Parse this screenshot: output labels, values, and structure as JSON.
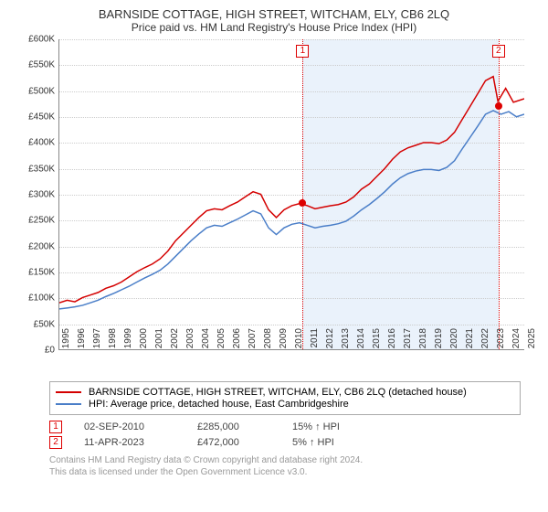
{
  "title": "BARNSIDE COTTAGE, HIGH STREET, WITCHAM, ELY, CB6 2LQ",
  "subtitle": "Price paid vs. HM Land Registry's House Price Index (HPI)",
  "chart": {
    "type": "line",
    "ylim": [
      0,
      600
    ],
    "ytick_step": 50,
    "yprefix": "£",
    "ysuffix": "K",
    "xlim": [
      1995,
      2025
    ],
    "xtick_step": 1,
    "grid_color": "#cccccc",
    "shade_start": 2010.67,
    "shade_end": 2023.28,
    "shade_color": "#eaf2fb",
    "series": [
      {
        "name": "property",
        "color": "#d40000",
        "width": 1.5,
        "points": [
          [
            1995,
            90
          ],
          [
            1995.5,
            95
          ],
          [
            1996,
            92
          ],
          [
            1996.5,
            100
          ],
          [
            1997,
            105
          ],
          [
            1997.5,
            110
          ],
          [
            1998,
            118
          ],
          [
            1998.5,
            123
          ],
          [
            1999,
            130
          ],
          [
            1999.5,
            140
          ],
          [
            2000,
            150
          ],
          [
            2000.5,
            158
          ],
          [
            2001,
            165
          ],
          [
            2001.5,
            175
          ],
          [
            2002,
            190
          ],
          [
            2002.5,
            210
          ],
          [
            2003,
            225
          ],
          [
            2003.5,
            240
          ],
          [
            2004,
            255
          ],
          [
            2004.5,
            268
          ],
          [
            2005,
            272
          ],
          [
            2005.5,
            270
          ],
          [
            2006,
            278
          ],
          [
            2006.5,
            285
          ],
          [
            2007,
            295
          ],
          [
            2007.5,
            305
          ],
          [
            2008,
            300
          ],
          [
            2008.5,
            270
          ],
          [
            2009,
            255
          ],
          [
            2009.5,
            270
          ],
          [
            2010,
            278
          ],
          [
            2010.5,
            282
          ],
          [
            2011,
            278
          ],
          [
            2011.5,
            272
          ],
          [
            2012,
            275
          ],
          [
            2012.5,
            278
          ],
          [
            2013,
            280
          ],
          [
            2013.5,
            285
          ],
          [
            2014,
            295
          ],
          [
            2014.5,
            310
          ],
          [
            2015,
            320
          ],
          [
            2015.5,
            335
          ],
          [
            2016,
            350
          ],
          [
            2016.5,
            368
          ],
          [
            2017,
            382
          ],
          [
            2017.5,
            390
          ],
          [
            2018,
            395
          ],
          [
            2018.5,
            400
          ],
          [
            2019,
            400
          ],
          [
            2019.5,
            398
          ],
          [
            2020,
            405
          ],
          [
            2020.5,
            420
          ],
          [
            2021,
            445
          ],
          [
            2021.5,
            470
          ],
          [
            2022,
            495
          ],
          [
            2022.5,
            520
          ],
          [
            2023,
            528
          ],
          [
            2023.3,
            480
          ],
          [
            2023.8,
            505
          ],
          [
            2024.3,
            478
          ],
          [
            2025,
            485
          ]
        ]
      },
      {
        "name": "hpi",
        "color": "#4a7ec8",
        "width": 1.5,
        "points": [
          [
            1995,
            78
          ],
          [
            1995.5,
            80
          ],
          [
            1996,
            82
          ],
          [
            1996.5,
            85
          ],
          [
            1997,
            90
          ],
          [
            1997.5,
            95
          ],
          [
            1998,
            102
          ],
          [
            1998.5,
            108
          ],
          [
            1999,
            115
          ],
          [
            1999.5,
            122
          ],
          [
            2000,
            130
          ],
          [
            2000.5,
            138
          ],
          [
            2001,
            145
          ],
          [
            2001.5,
            153
          ],
          [
            2002,
            165
          ],
          [
            2002.5,
            180
          ],
          [
            2003,
            195
          ],
          [
            2003.5,
            210
          ],
          [
            2004,
            223
          ],
          [
            2004.5,
            235
          ],
          [
            2005,
            240
          ],
          [
            2005.5,
            238
          ],
          [
            2006,
            245
          ],
          [
            2006.5,
            252
          ],
          [
            2007,
            260
          ],
          [
            2007.5,
            268
          ],
          [
            2008,
            262
          ],
          [
            2008.5,
            235
          ],
          [
            2009,
            222
          ],
          [
            2009.5,
            235
          ],
          [
            2010,
            242
          ],
          [
            2010.5,
            245
          ],
          [
            2011,
            240
          ],
          [
            2011.5,
            235
          ],
          [
            2012,
            238
          ],
          [
            2012.5,
            240
          ],
          [
            2013,
            243
          ],
          [
            2013.5,
            248
          ],
          [
            2014,
            258
          ],
          [
            2014.5,
            270
          ],
          [
            2015,
            280
          ],
          [
            2015.5,
            292
          ],
          [
            2016,
            305
          ],
          [
            2016.5,
            320
          ],
          [
            2017,
            332
          ],
          [
            2017.5,
            340
          ],
          [
            2018,
            345
          ],
          [
            2018.5,
            348
          ],
          [
            2019,
            348
          ],
          [
            2019.5,
            346
          ],
          [
            2020,
            352
          ],
          [
            2020.5,
            365
          ],
          [
            2021,
            388
          ],
          [
            2021.5,
            410
          ],
          [
            2022,
            432
          ],
          [
            2022.5,
            455
          ],
          [
            2023,
            462
          ],
          [
            2023.5,
            455
          ],
          [
            2024,
            460
          ],
          [
            2024.5,
            450
          ],
          [
            2025,
            455
          ]
        ]
      }
    ],
    "markers": [
      {
        "label": "1",
        "x": 2010.67,
        "y": 285
      },
      {
        "label": "2",
        "x": 2023.28,
        "y": 472
      }
    ]
  },
  "legend": {
    "items": [
      {
        "color": "#d40000",
        "label": "BARNSIDE COTTAGE, HIGH STREET, WITCHAM, ELY, CB6 2LQ (detached house)"
      },
      {
        "color": "#4a7ec8",
        "label": "HPI: Average price, detached house, East Cambridgeshire"
      }
    ]
  },
  "sales": [
    {
      "marker": "1",
      "date": "02-SEP-2010",
      "price": "£285,000",
      "delta": "15% ↑ HPI"
    },
    {
      "marker": "2",
      "date": "11-APR-2023",
      "price": "£472,000",
      "delta": "5% ↑ HPI"
    }
  ],
  "attribution": {
    "line1": "Contains HM Land Registry data © Crown copyright and database right 2024.",
    "line2": "This data is licensed under the Open Government Licence v3.0."
  }
}
